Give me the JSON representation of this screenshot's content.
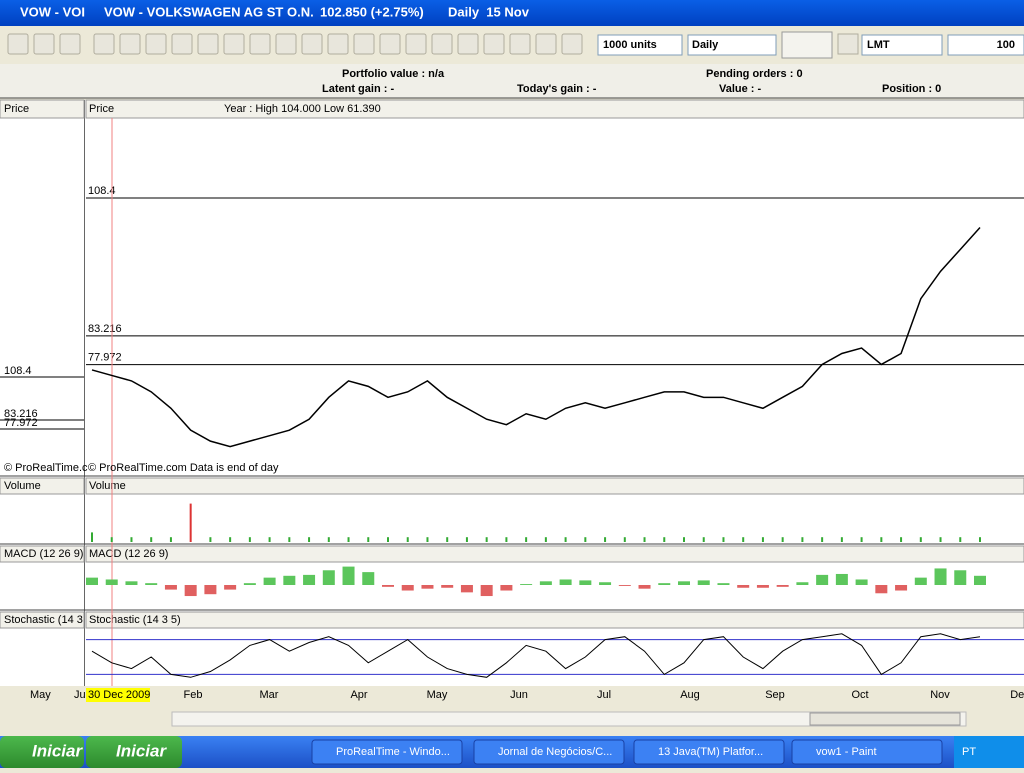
{
  "title_bar": {
    "left": "VOW - VOI",
    "name": "VOW - VOLKSWAGEN AG ST O.N.",
    "quote": "102.850 (+2.75%)",
    "period": "Daily  15 Nov"
  },
  "toolbar": {
    "quantity": "1000 units",
    "interval": "Daily",
    "order_type": "LMT",
    "amount": "100"
  },
  "info": {
    "portfolio": "Portfolio value : n/a",
    "pending": "Pending orders : 0",
    "latent": "Latent gain : -",
    "today": "Today's gain : -",
    "value": "Value : -",
    "position": "Position : 0"
  },
  "side_panel": {
    "price": "Price",
    "copyright": "© ProRealTime.c",
    "volume": "Volume",
    "macd": "MACD (12 26 9)",
    "stochastic": "Stochastic (14 3",
    "months": [
      "May",
      "Ju"
    ]
  },
  "chart": {
    "price": {
      "label": "Price",
      "info": "Year : High 104.000 Low 61.390",
      "copyright": "© ProRealTime.com  Data is end of day",
      "ylim": [
        58,
        123
      ],
      "levels": [
        108.4,
        83.216,
        77.972
      ],
      "closes": [
        77,
        76,
        75,
        73,
        70,
        66,
        64,
        63,
        64,
        65,
        66,
        68,
        72,
        75,
        74,
        72,
        73,
        75,
        72,
        70,
        68,
        67,
        69,
        68,
        70,
        71,
        70,
        71,
        72,
        73,
        73,
        72,
        72,
        71,
        70,
        72,
        74,
        78,
        80,
        81,
        78,
        80,
        90,
        95,
        99,
        103
      ]
    },
    "volume": {
      "label": "Volume",
      "ylim": [
        0,
        10
      ],
      "values": [
        2,
        1,
        1,
        1,
        1,
        8,
        1,
        1,
        1,
        1,
        1,
        1,
        1,
        1,
        1,
        1,
        1,
        1,
        1,
        1,
        1,
        1,
        1,
        1,
        1,
        1,
        1,
        1,
        1,
        1,
        1,
        1,
        1,
        1,
        1,
        1,
        1,
        1,
        1,
        1,
        1,
        1,
        1,
        1,
        1,
        1
      ]
    },
    "macd": {
      "label": "MACD (12 26 9)",
      "ylim": [
        -2.5,
        2.5
      ],
      "values": [
        0.8,
        0.6,
        0.4,
        0.2,
        -0.5,
        -1.2,
        -1.0,
        -0.5,
        0.2,
        0.8,
        1.0,
        1.1,
        1.6,
        2.0,
        1.4,
        -0.2,
        -0.6,
        -0.4,
        -0.3,
        -0.8,
        -1.2,
        -0.6,
        0.1,
        0.4,
        0.6,
        0.5,
        0.3,
        -0.1,
        -0.4,
        0.2,
        0.4,
        0.5,
        0.2,
        -0.3,
        -0.3,
        -0.2,
        0.3,
        1.1,
        1.2,
        0.6,
        -0.9,
        -0.6,
        0.8,
        1.8,
        1.6,
        1.0
      ]
    },
    "stochastic": {
      "label": "Stochastic (14 3 5)",
      "ylim": [
        0,
        100
      ],
      "levels": [
        20,
        80
      ],
      "values": [
        60,
        40,
        30,
        50,
        20,
        15,
        25,
        45,
        70,
        80,
        60,
        75,
        85,
        70,
        40,
        60,
        80,
        50,
        30,
        20,
        15,
        40,
        70,
        60,
        30,
        50,
        80,
        85,
        60,
        20,
        40,
        80,
        85,
        50,
        30,
        60,
        80,
        85,
        90,
        70,
        20,
        40,
        85,
        90,
        80,
        85
      ]
    },
    "cursor_date": "30 Dec 2009",
    "months": [
      "Feb",
      "Mar",
      "Apr",
      "May",
      "Jun",
      "Jul",
      "Aug",
      "Sep",
      "Oct",
      "Nov",
      "Dec"
    ]
  },
  "taskbar": {
    "start": "Iniciar",
    "start2": "Iniciar",
    "tasks": [
      "ProRealTime - Windo...",
      "Jornal de Negócios/C...",
      "13 Java(TM) Platfor...",
      "vow1 - Paint"
    ],
    "lang": "PT"
  }
}
